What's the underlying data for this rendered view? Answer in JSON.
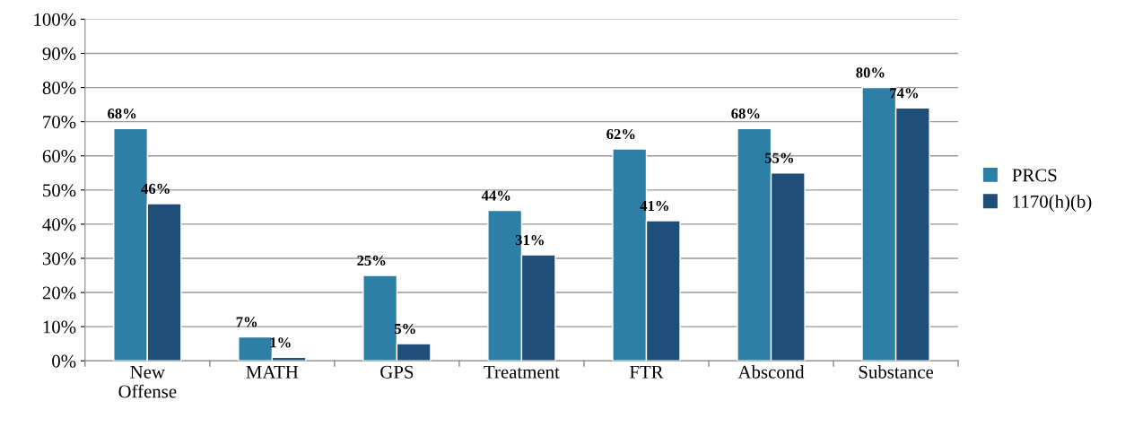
{
  "chart_data": {
    "type": "bar",
    "categories": [
      "New\nOffense",
      "MATH",
      "GPS",
      "Treatment",
      "FTR",
      "Abscond",
      "Substance"
    ],
    "series": [
      {
        "name": "PRCS",
        "color": "#2e7fa6",
        "values": [
          68,
          7,
          25,
          44,
          62,
          68,
          80
        ],
        "value_labels": [
          "68%",
          "7%",
          "25%",
          "44%",
          "62%",
          "68%",
          "80%"
        ]
      },
      {
        "name": "1170(h)(b)",
        "color": "#1f4e79",
        "values": [
          46,
          1,
          5,
          31,
          41,
          55,
          74
        ],
        "value_labels": [
          "46%",
          "1%",
          "5%",
          "31%",
          "41%",
          "55%",
          "74%"
        ]
      }
    ],
    "ylim": [
      0,
      100
    ],
    "yticks": [
      {
        "value": 0,
        "label": "0%"
      },
      {
        "value": 10,
        "label": "10%"
      },
      {
        "value": 20,
        "label": "20%"
      },
      {
        "value": 30,
        "label": "30%"
      },
      {
        "value": 40,
        "label": "40%"
      },
      {
        "value": 50,
        "label": "50%"
      },
      {
        "value": 60,
        "label": "60%"
      },
      {
        "value": 70,
        "label": "70%"
      },
      {
        "value": 80,
        "label": "80%"
      },
      {
        "value": 90,
        "label": "90%"
      },
      {
        "value": 100,
        "label": "100%"
      }
    ],
    "grid": "y",
    "legend": "right"
  }
}
